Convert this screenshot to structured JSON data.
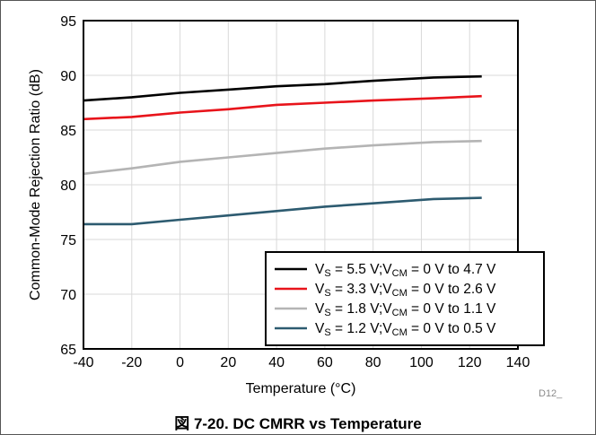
{
  "chart_data": {
    "type": "line",
    "xlabel": "Temperature (°C)",
    "ylabel": "Common-Mode Rejection Ratio (dB)",
    "xlim": [
      -40,
      140
    ],
    "ylim": [
      65,
      95
    ],
    "xticks": [
      -40,
      -20,
      0,
      20,
      40,
      60,
      80,
      100,
      120,
      140
    ],
    "yticks": [
      65,
      70,
      75,
      80,
      85,
      90,
      95
    ],
    "grid": true,
    "legend_position": "bottom-right",
    "series": [
      {
        "name_parts": [
          "V",
          "S",
          " = 5.5 V;V",
          "CM",
          " = 0 V to 4.7 V"
        ],
        "color": "#000000",
        "x": [
          -40,
          -20,
          0,
          20,
          40,
          60,
          80,
          105,
          125
        ],
        "y": [
          87.7,
          88.0,
          88.4,
          88.7,
          89.0,
          89.2,
          89.5,
          89.8,
          89.9
        ]
      },
      {
        "name_parts": [
          "V",
          "S",
          " = 3.3 V;V",
          "CM",
          " = 0 V to 2.6 V"
        ],
        "color": "#e8141b",
        "x": [
          -40,
          -20,
          0,
          20,
          40,
          60,
          80,
          105,
          125
        ],
        "y": [
          86.0,
          86.2,
          86.6,
          86.9,
          87.3,
          87.5,
          87.7,
          87.9,
          88.1
        ]
      },
      {
        "name_parts": [
          "V",
          "S",
          " = 1.8 V;V",
          "CM",
          " = 0 V to 1.1 V"
        ],
        "color": "#b4b4b4",
        "x": [
          -40,
          -20,
          0,
          20,
          40,
          60,
          80,
          105,
          125
        ],
        "y": [
          81.0,
          81.5,
          82.1,
          82.5,
          82.9,
          83.3,
          83.6,
          83.9,
          84.0
        ]
      },
      {
        "name_parts": [
          "V",
          "S",
          " = 1.2 V;V",
          "CM",
          " = 0 V to 0.5 V"
        ],
        "color": "#2d5b70",
        "x": [
          -40,
          -20,
          0,
          20,
          40,
          60,
          80,
          105,
          125
        ],
        "y": [
          76.4,
          76.4,
          76.8,
          77.2,
          77.6,
          78.0,
          78.3,
          78.7,
          78.8
        ]
      }
    ],
    "annotation": "D12_"
  },
  "caption": "図 7-20. DC CMRR vs Temperature"
}
